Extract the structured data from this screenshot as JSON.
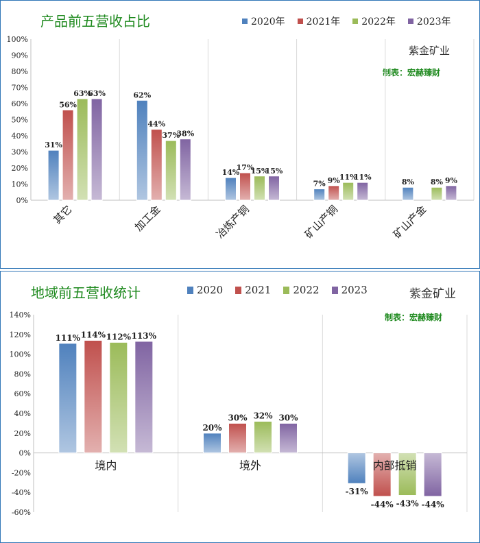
{
  "colors": {
    "y2020": "#4f81bd",
    "y2021": "#c0504d",
    "y2022": "#9bbb59",
    "y2023": "#8064a2",
    "title": "#1f8a1f",
    "border": "#2e75b6"
  },
  "charts": [
    {
      "title": "产品前五营收占比",
      "company": "紫金矿业",
      "maker": "制表：宏赫臻财",
      "legend": [
        "2020年",
        "2021年",
        "2022年",
        "2023年"
      ]
    },
    {
      "title": "地域前五营收统计",
      "company": "紫金矿业",
      "maker": "制表：宏赫臻财",
      "legend": [
        "2020",
        "2021",
        "2022",
        "2023"
      ]
    }
  ],
  "chart_data": [
    {
      "type": "bar",
      "title": "产品前五营收占比",
      "categories": [
        "其它",
        "加工金",
        "冶炼产铜",
        "矿山产铜",
        "矿山产金"
      ],
      "series": [
        {
          "name": "2020年",
          "values": [
            31,
            62,
            14,
            7,
            8
          ]
        },
        {
          "name": "2021年",
          "values": [
            56,
            44,
            17,
            9,
            null
          ]
        },
        {
          "name": "2022年",
          "values": [
            63,
            37,
            15,
            11,
            8
          ]
        },
        {
          "name": "2023年",
          "values": [
            63,
            38,
            15,
            11,
            9
          ]
        }
      ],
      "ylim": [
        0,
        100
      ],
      "yticks": [
        "0%",
        "10%",
        "20%",
        "30%",
        "40%",
        "50%",
        "60%",
        "70%",
        "80%",
        "90%",
        "100%"
      ],
      "data_labels": [
        [
          "31%",
          "56%",
          "63%",
          "63%"
        ],
        [
          "62%",
          "44%",
          "37%",
          "38%"
        ],
        [
          "14%",
          "17%",
          "15%",
          "15%"
        ],
        [
          "7%",
          "9%",
          "11%",
          "11%"
        ],
        [
          "8%",
          "",
          "8%",
          "9%"
        ]
      ],
      "grid": "vertical category separators",
      "legend_position": "top"
    },
    {
      "type": "bar",
      "title": "地域前五营收统计",
      "categories": [
        "境内",
        "境外",
        "内部抵销"
      ],
      "series": [
        {
          "name": "2020",
          "values": [
            111,
            20,
            -31
          ]
        },
        {
          "name": "2021",
          "values": [
            114,
            30,
            -44
          ]
        },
        {
          "name": "2022",
          "values": [
            112,
            32,
            -43
          ]
        },
        {
          "name": "2023",
          "values": [
            113,
            30,
            -44
          ]
        }
      ],
      "ylim": [
        -60,
        140
      ],
      "yticks": [
        "-60%",
        "-40%",
        "-20%",
        "0%",
        "20%",
        "40%",
        "60%",
        "80%",
        "100%",
        "120%",
        "140%"
      ],
      "data_labels": [
        [
          "111%",
          "114%",
          "112%",
          "113%"
        ],
        [
          "20%",
          "30%",
          "32%",
          "30%"
        ],
        [
          "-31%",
          "-44%",
          "-43%",
          "-44%"
        ]
      ],
      "grid": "vertical category separators",
      "legend_position": "top"
    }
  ]
}
